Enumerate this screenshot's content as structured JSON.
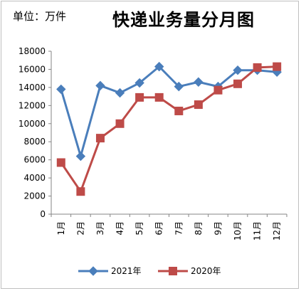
{
  "chart_data": {
    "type": "line",
    "title": "快递业务量分月图",
    "subtitle": "单位：万件",
    "categories": [
      "1月",
      "2月",
      "3月",
      "4月",
      "5月",
      "6月",
      "7月",
      "8月",
      "9月",
      "10月",
      "11月",
      "12月"
    ],
    "ylim": [
      0,
      18000
    ],
    "yticks": [
      0,
      2000,
      4000,
      6000,
      8000,
      10000,
      12000,
      14000,
      16000,
      18000
    ],
    "grid": false,
    "legend": "bottom",
    "series": [
      {
        "name": "2021年",
        "color": "#4A7EBB",
        "marker": "diamond",
        "values": [
          13800,
          6400,
          14200,
          13400,
          14500,
          16300,
          14100,
          14600,
          14100,
          15900,
          15900,
          15700
        ]
      },
      {
        "name": "2020年",
        "color": "#BE4B48",
        "marker": "square",
        "values": [
          5700,
          2500,
          8400,
          10000,
          12900,
          12900,
          11400,
          12100,
          13700,
          14400,
          16200,
          16300
        ]
      }
    ]
  }
}
